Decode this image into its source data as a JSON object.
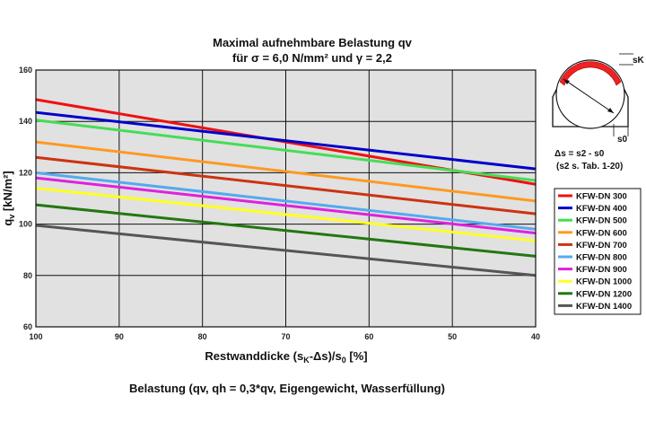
{
  "chart_data": {
    "type": "line",
    "title": "Maximal aufnehmbare Belastung qv",
    "subtitle": "für σ = 6,0 N/mm² und γ = 2,2",
    "xlabel": "Restwanddicke (sK-Δs)/s0 [%]",
    "xlabel_parts": {
      "pre": "Restwanddicke (s",
      "sub1": "K",
      "mid": "-Δs)/s",
      "sub2": "0",
      "post": " [%]"
    },
    "ylabel": "qv [kN/m²]",
    "ylabel_parts": {
      "pre": "q",
      "sub": "v",
      "post": " [kN/m²]"
    },
    "footer": "Belastung (qv, qh = 0,3*qv, Eigengewicht, Wasserfüllung)",
    "x_ticks": [
      "100",
      "90",
      "80",
      "70",
      "60",
      "50",
      "40"
    ],
    "y_ticks": [
      "60",
      "80",
      "100",
      "120",
      "140",
      "160"
    ],
    "xlim": [
      100,
      40
    ],
    "ylim": [
      60,
      160
    ],
    "grid": true,
    "legend_position": "right",
    "series": [
      {
        "name": "KFW-DN 300",
        "color": "#ee1111",
        "points": [
          [
            100,
            148.5
          ],
          [
            40,
            115.5
          ]
        ]
      },
      {
        "name": "KFW-DN 400",
        "color": "#0000cc",
        "points": [
          [
            100,
            143.5
          ],
          [
            40,
            121.5
          ]
        ]
      },
      {
        "name": "KFW-DN 500",
        "color": "#44dd55",
        "points": [
          [
            100,
            140.5
          ],
          [
            40,
            117
          ]
        ]
      },
      {
        "name": "KFW-DN 600",
        "color": "#ff9922",
        "points": [
          [
            100,
            132
          ],
          [
            40,
            109
          ]
        ]
      },
      {
        "name": "KFW-DN 700",
        "color": "#cc3311",
        "points": [
          [
            100,
            126
          ],
          [
            40,
            104
          ]
        ]
      },
      {
        "name": "KFW-DN 800",
        "color": "#55aaee",
        "points": [
          [
            100,
            120
          ],
          [
            40,
            98
          ]
        ]
      },
      {
        "name": "KFW-DN 900",
        "color": "#dd22dd",
        "points": [
          [
            100,
            118
          ],
          [
            40,
            96.5
          ]
        ]
      },
      {
        "name": "KFW-DN 1000",
        "color": "#ffff22",
        "points": [
          [
            100,
            114
          ],
          [
            40,
            93.5
          ]
        ]
      },
      {
        "name": "KFW-DN 1200",
        "color": "#227711",
        "points": [
          [
            100,
            107.5
          ],
          [
            40,
            87.5
          ]
        ]
      },
      {
        "name": "KFW-DN 1400",
        "color": "#555555",
        "points": [
          [
            100,
            99.5
          ],
          [
            40,
            80
          ]
        ]
      }
    ]
  },
  "diagram": {
    "label_sk": "sK",
    "label_s0": "s0",
    "delta_formula": "Δs = s2 - s0",
    "ref_note": "(s2 s. Tab. 1-20)"
  },
  "colors": {
    "plot_background": "#e1e1e1",
    "grid": "#111111",
    "diagram_fill": "#ee2222"
  }
}
